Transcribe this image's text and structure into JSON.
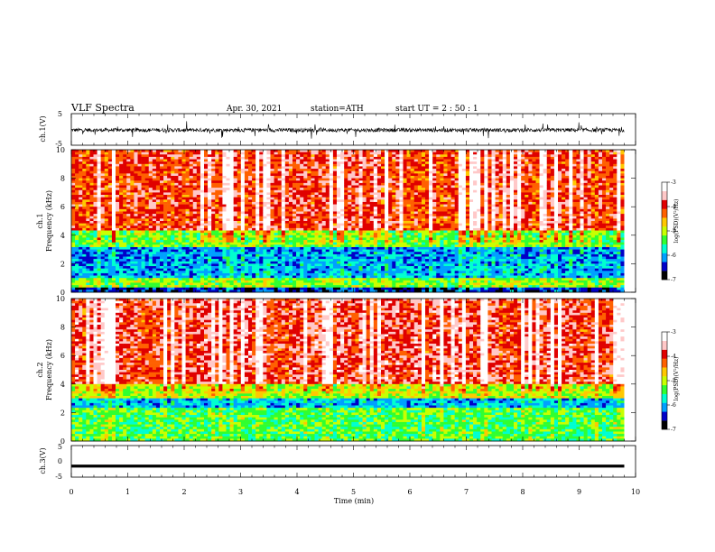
{
  "header": {
    "title": "VLF  Spectra",
    "date": "Apr. 30, 2021",
    "station": "station=ATH",
    "start": "start  UT  =    2  : 50 : 1"
  },
  "chart_data": [
    {
      "type": "line",
      "name": "ch1-waveform",
      "ylabel": "ch.1(V)",
      "ylim": [
        -5,
        5
      ],
      "yticks": [
        "5",
        "-5"
      ],
      "xlim": [
        0,
        10
      ],
      "data_extent_min": 9.8,
      "description_values": {
        "baseline": -0.2,
        "noise_amplitude": 1.2,
        "spike_max": 2.5
      }
    },
    {
      "type": "heatmap",
      "name": "ch1-spectrogram",
      "ylabel": "ch.1\nFrequency  (kHz)",
      "ylabel_lines": [
        "ch.1",
        "Frequency  (kHz)"
      ],
      "ylim": [
        0,
        10
      ],
      "yticks": [
        "0",
        "2",
        "4",
        "6",
        "8",
        "10"
      ],
      "xlim": [
        0,
        10
      ],
      "colorbar": {
        "label": "log(PSD)(V²/Hz)",
        "range": [
          -7,
          -3
        ],
        "ticks": [
          "-3",
          "-4",
          "-5",
          "-6",
          "-7"
        ]
      },
      "bands_khz": [
        {
          "from": 0,
          "to": 0.3,
          "level": -6.5
        },
        {
          "from": 0.3,
          "to": 1.0,
          "level": -5.2
        },
        {
          "from": 1.0,
          "to": 2.0,
          "level": -6.0
        },
        {
          "from": 2.0,
          "to": 3.2,
          "level": -6.1
        },
        {
          "from": 3.2,
          "to": 4.3,
          "level": -5.2
        },
        {
          "from": 4.3,
          "to": 10,
          "level": -4.0
        }
      ]
    },
    {
      "type": "heatmap",
      "name": "ch2-spectrogram",
      "ylabel_lines": [
        "ch.2",
        "Frequency  (kHz)"
      ],
      "ylim": [
        0,
        10
      ],
      "yticks": [
        "0",
        "2",
        "4",
        "6",
        "8",
        "10"
      ],
      "xlim": [
        0,
        10
      ],
      "colorbar": {
        "label": "log(PSD)(V²/Hz)",
        "range": [
          -7,
          -3
        ],
        "ticks": [
          "-3",
          "-4",
          "-5",
          "-6",
          "-7"
        ]
      },
      "bands_khz": [
        {
          "from": 0,
          "to": 2.3,
          "level": -5.4
        },
        {
          "from": 2.3,
          "to": 3.0,
          "level": -6.0
        },
        {
          "from": 3.0,
          "to": 4.0,
          "level": -5.0
        },
        {
          "from": 4.0,
          "to": 10,
          "level": -3.9
        }
      ]
    },
    {
      "type": "line",
      "name": "ch3-waveform",
      "ylabel": "ch.3(V)",
      "ylim": [
        -5,
        5
      ],
      "yticks": [
        "5",
        "0",
        "-5"
      ],
      "xlim": [
        0,
        10
      ],
      "data_extent_min": 9.8,
      "description_values": {
        "baseline": -1.5
      }
    }
  ],
  "xaxis": {
    "label": "Time  (min)",
    "ticks": [
      "0",
      "1",
      "2",
      "3",
      "4",
      "5",
      "6",
      "7",
      "8",
      "9",
      "10"
    ]
  },
  "colors": {
    "cmap": [
      "#000000",
      "#0000c8",
      "#00a0ff",
      "#00ffd0",
      "#30ff30",
      "#c8ff00",
      "#ffc800",
      "#ff6000",
      "#e00000",
      "#ffc8c8",
      "#ffffff"
    ]
  }
}
